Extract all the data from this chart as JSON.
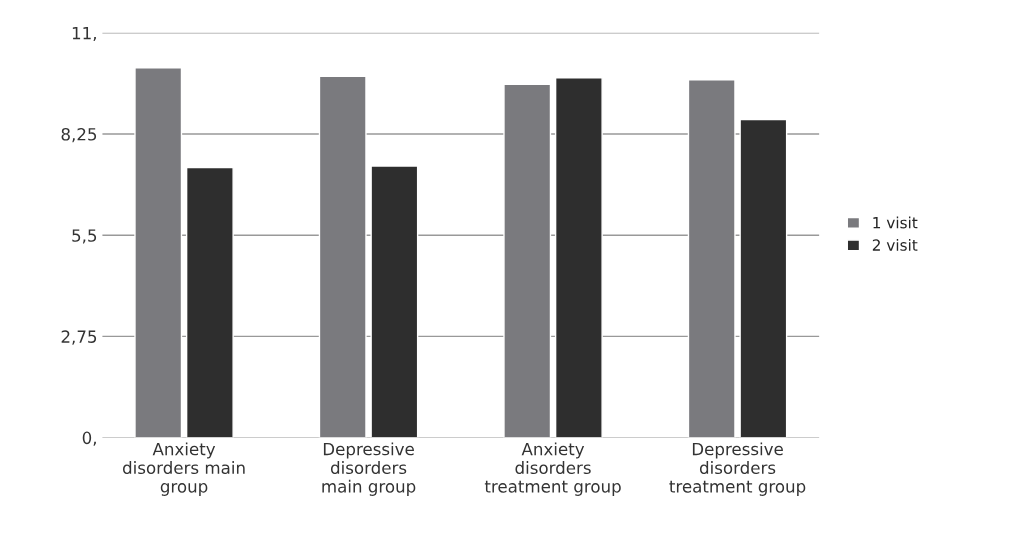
{
  "chart_data": {
    "type": "bar",
    "categories": [
      "Anxiety\ndisorders main\ngroup",
      "Depressive\ndisorders\nmain group",
      "Anxiety\ndisorders\ntreatment group",
      "Depressive\ndisorders\ntreatment group"
    ],
    "series": [
      {
        "name": "1 visit",
        "color": "#7a7a7e",
        "values": [
          10.05,
          9.82,
          9.6,
          9.72
        ]
      },
      {
        "name": "2 visit",
        "color": "#2e2e2e",
        "values": [
          7.34,
          7.38,
          9.78,
          8.64
        ]
      }
    ],
    "ylim": [
      0,
      11
    ],
    "yticks": [
      {
        "value": 0,
        "label": "0,"
      },
      {
        "value": 2.75,
        "label": "2,75"
      },
      {
        "value": 5.5,
        "label": "5,5"
      },
      {
        "value": 8.25,
        "label": "8,25"
      },
      {
        "value": 11,
        "label": "11,"
      }
    ],
    "grid": "y",
    "legend": "right"
  }
}
